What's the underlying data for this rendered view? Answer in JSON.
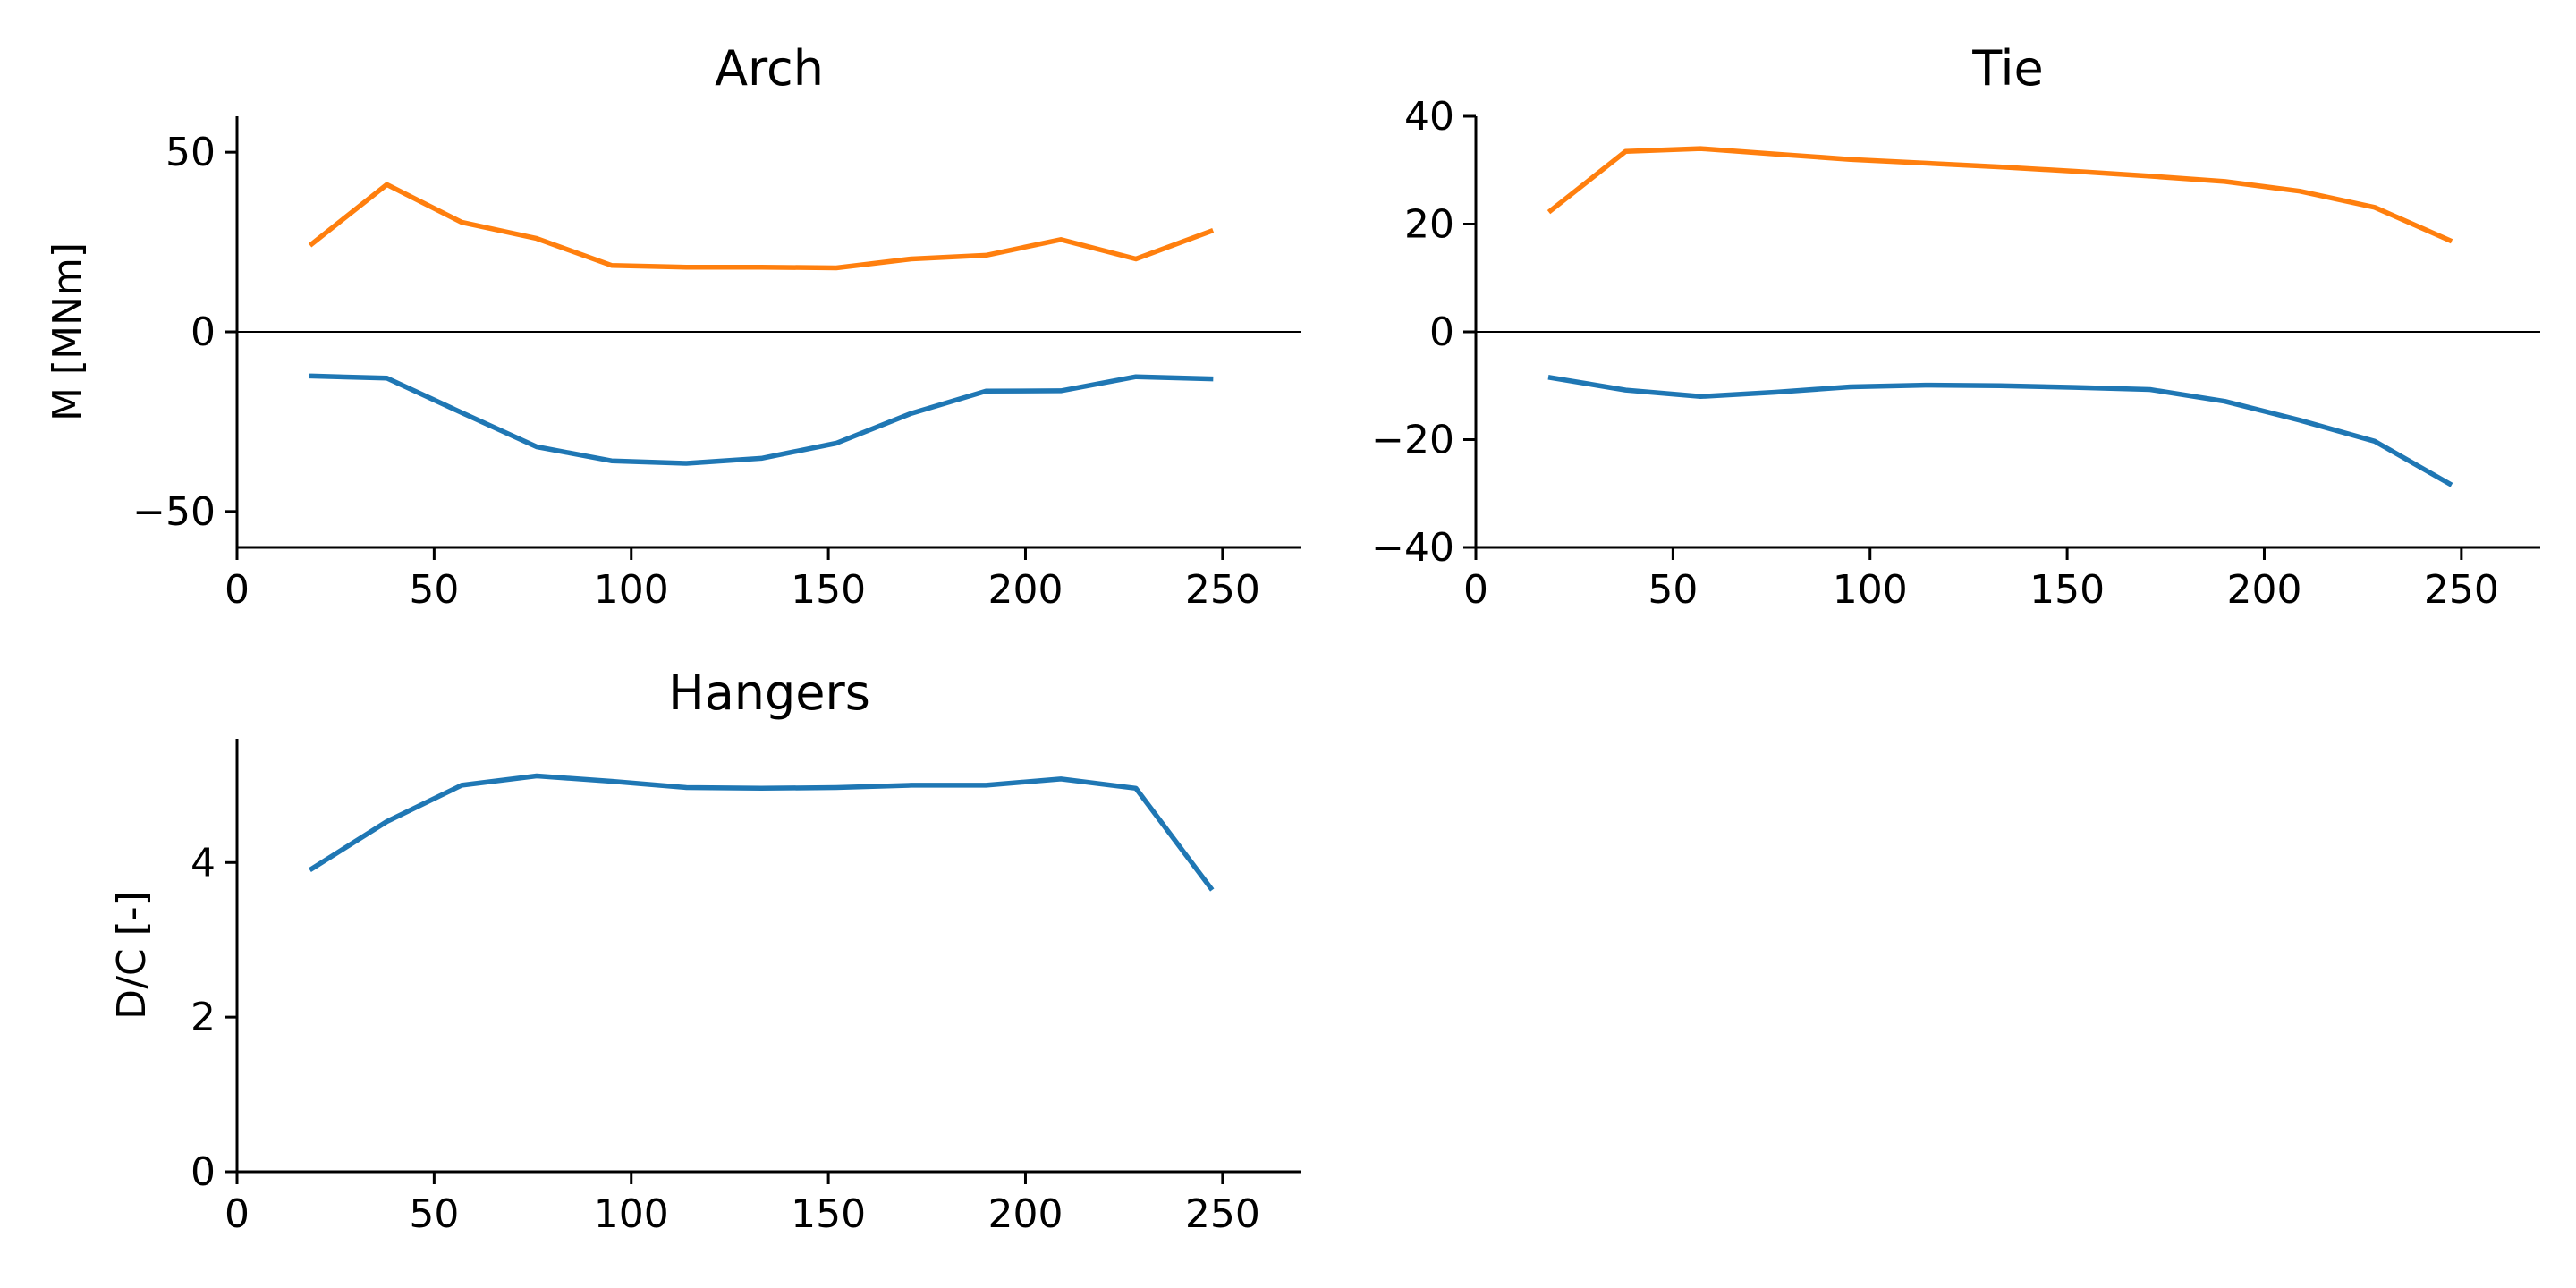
{
  "chart_data": [
    {
      "type": "line",
      "title": "Arch",
      "xlabel": "",
      "ylabel": "M [MNm]",
      "xlim": [
        0,
        270
      ],
      "ylim": [
        -60,
        60
      ],
      "xticks": [
        0,
        50,
        100,
        150,
        200,
        250
      ],
      "yticks": [
        -50,
        0,
        50
      ],
      "zero_line": true,
      "grid": false,
      "series": [
        {
          "color": "#ff7f0e",
          "x": [
            19,
            38,
            57,
            76,
            95,
            114,
            133,
            152,
            171,
            190,
            209,
            228,
            247
          ],
          "y": [
            24.5,
            41,
            30.5,
            26,
            18.5,
            18,
            18,
            17.8,
            20.3,
            21.3,
            25.7,
            20.3,
            28
          ]
        },
        {
          "color": "#1f77b4",
          "x": [
            19,
            38,
            57,
            76,
            95,
            114,
            133,
            152,
            171,
            190,
            209,
            228,
            247
          ],
          "y": [
            -12.3,
            -12.9,
            -22.5,
            -32,
            -35.9,
            -36.6,
            -35.2,
            -31,
            -22.7,
            -16.5,
            -16.4,
            -12.5,
            -13.1
          ]
        }
      ]
    },
    {
      "type": "line",
      "title": "Tie",
      "xlabel": "",
      "ylabel": "",
      "xlim": [
        0,
        270
      ],
      "ylim": [
        -40,
        40
      ],
      "xticks": [
        0,
        50,
        100,
        150,
        200,
        250
      ],
      "yticks": [
        -40,
        -20,
        0,
        20,
        40
      ],
      "zero_line": true,
      "grid": false,
      "series": [
        {
          "color": "#ff7f0e",
          "x": [
            19,
            38,
            57,
            76,
            95,
            114,
            133,
            152,
            171,
            190,
            209,
            228,
            247
          ],
          "y": [
            22.5,
            33.5,
            34,
            33,
            32,
            31.3,
            30.6,
            29.8,
            28.9,
            27.9,
            26.1,
            23.1,
            17
          ]
        },
        {
          "color": "#1f77b4",
          "x": [
            19,
            38,
            57,
            76,
            95,
            114,
            133,
            152,
            171,
            190,
            209,
            228,
            247
          ],
          "y": [
            -8.5,
            -10.8,
            -12,
            -11.2,
            -10.2,
            -9.9,
            -10,
            -10.3,
            -10.7,
            -12.9,
            -16.4,
            -20.3,
            -28.2
          ]
        }
      ]
    },
    {
      "type": "line",
      "title": "Hangers",
      "xlabel": "",
      "ylabel": "D/C [-]",
      "xlim": [
        0,
        270
      ],
      "ylim": [
        0,
        5.6
      ],
      "xticks": [
        0,
        50,
        100,
        150,
        200,
        250
      ],
      "yticks": [
        0,
        2,
        4
      ],
      "zero_line": false,
      "grid": false,
      "series": [
        {
          "color": "#1f77b4",
          "x": [
            19,
            38,
            57,
            76,
            95,
            114,
            133,
            152,
            171,
            190,
            209,
            228,
            247
          ],
          "y": [
            3.92,
            4.53,
            5.0,
            5.12,
            5.05,
            4.97,
            4.96,
            4.97,
            5.0,
            5.0,
            5.08,
            4.96,
            3.67
          ]
        }
      ]
    }
  ]
}
